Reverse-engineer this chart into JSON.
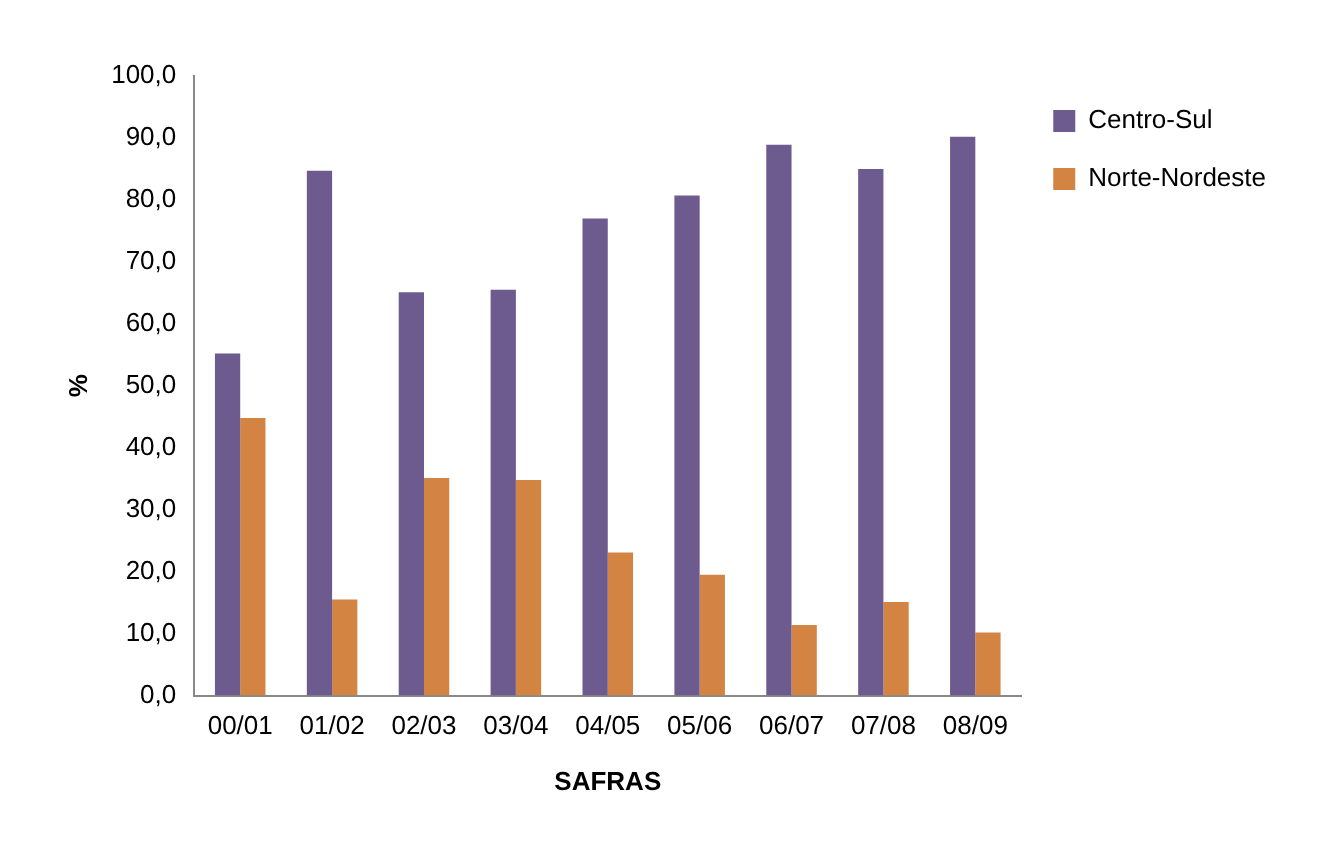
{
  "chart_data": {
    "type": "bar",
    "xlabel": "SAFRAS",
    "ylabel": "%",
    "categories": [
      "00/01",
      "01/02",
      "02/03",
      "03/04",
      "04/05",
      "05/06",
      "06/07",
      "07/08",
      "08/09"
    ],
    "series": [
      {
        "name": "Centro-Sul",
        "color": "#6d5a8e",
        "values": [
          55.2,
          84.7,
          65.1,
          65.5,
          77.0,
          80.7,
          88.9,
          85.0,
          90.2
        ]
      },
      {
        "name": "Norte-Nordeste",
        "color": "#d38442",
        "values": [
          44.8,
          15.5,
          35.1,
          34.8,
          23.1,
          19.5,
          11.4,
          15.1,
          10.2
        ]
      }
    ],
    "ylim": [
      0,
      100
    ],
    "yticks": [
      {
        "value": 0,
        "label": "0,0"
      },
      {
        "value": 10,
        "label": "10,0"
      },
      {
        "value": 20,
        "label": "20,0"
      },
      {
        "value": 30,
        "label": "30,0"
      },
      {
        "value": 40,
        "label": "40,0"
      },
      {
        "value": 50,
        "label": "50,0"
      },
      {
        "value": 60,
        "label": "60,0"
      },
      {
        "value": 70,
        "label": "70,0"
      },
      {
        "value": 80,
        "label": "80,0"
      },
      {
        "value": 90,
        "label": "90,0"
      },
      {
        "value": 100,
        "label": "100,0"
      }
    ],
    "grid": false,
    "legend": "top right"
  }
}
